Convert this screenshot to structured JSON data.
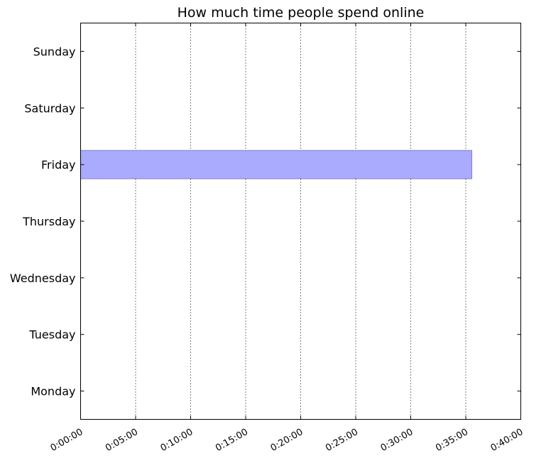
{
  "chart_data": {
    "type": "bar",
    "orientation": "horizontal",
    "title": "How much time people spend online",
    "xlabel": "",
    "ylabel": "",
    "categories": [
      "Monday",
      "Tuesday",
      "Wednesday",
      "Thursday",
      "Friday",
      "Saturday",
      "Sunday"
    ],
    "values": [
      0,
      0,
      0,
      0,
      2133,
      0,
      0
    ],
    "value_labels": [
      "0:00:00",
      "0:00:00",
      "0:00:00",
      "0:00:00",
      "0:35:33",
      "0:00:00",
      "0:00:00"
    ],
    "value_unit": "seconds",
    "xlim": [
      0,
      2400
    ],
    "xticks": [
      0,
      300,
      600,
      900,
      1200,
      1500,
      1800,
      2100,
      2400
    ],
    "xtick_labels": [
      "0:00:00",
      "0:05:00",
      "0:10:00",
      "0:15:00",
      "0:20:00",
      "0:25:00",
      "0:30:00",
      "0:35:00",
      "0:40:00"
    ],
    "grid": "x-axis dotted",
    "legend": "none",
    "bar_color": "#aaaaff",
    "bar_edge_color": "#8080c0"
  }
}
